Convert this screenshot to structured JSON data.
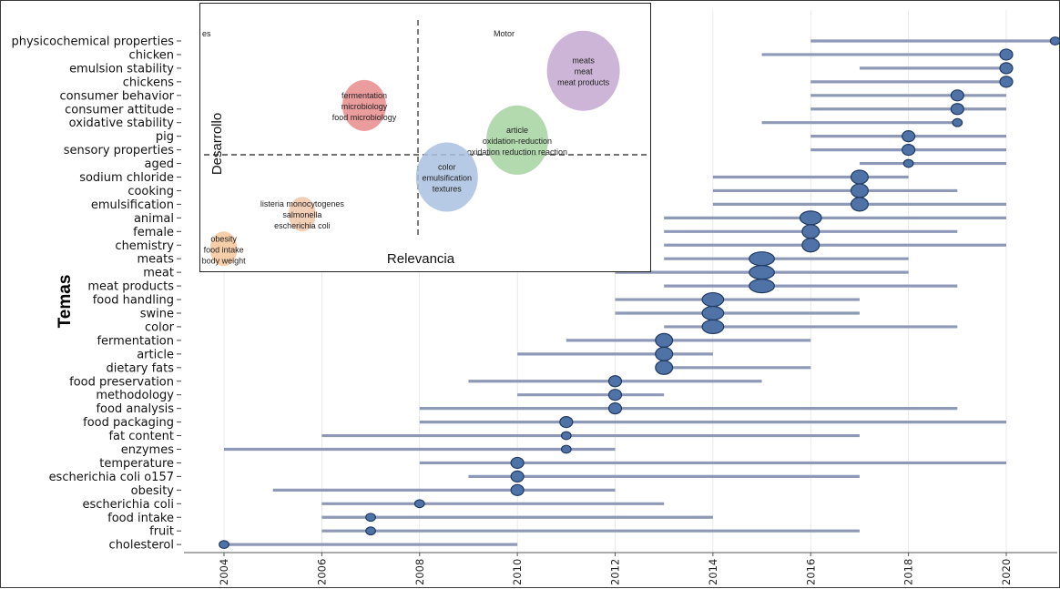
{
  "chart_data": [
    {
      "type": "scatter",
      "ylabel": "Temas",
      "xlim": [
        2004,
        2021
      ],
      "xticks": [
        "2004",
        "2006",
        "2008",
        "2010",
        "2012",
        "2014",
        "2016",
        "2018",
        "2020"
      ],
      "colors": {
        "line": "#8e99b8",
        "bubble": "#4f73a6",
        "bubble_edge": "#1f3a63",
        "grid": "#dddddd"
      },
      "topics": [
        {
          "term": "physicochemical properties",
          "start": 2016,
          "end": 2021,
          "median": 2021,
          "freq": 1
        },
        {
          "term": "chicken",
          "start": 2015,
          "end": 2020,
          "median": 2020,
          "freq": 2
        },
        {
          "term": "emulsion stability",
          "start": 2017,
          "end": 2020,
          "median": 2020,
          "freq": 2
        },
        {
          "term": "chickens",
          "start": 2016,
          "end": 2020,
          "median": 2020,
          "freq": 2
        },
        {
          "term": "consumer behavior",
          "start": 2016,
          "end": 2020,
          "median": 2019,
          "freq": 2
        },
        {
          "term": "consumer attitude",
          "start": 2016,
          "end": 2020,
          "median": 2019,
          "freq": 2
        },
        {
          "term": "oxidative stability",
          "start": 2015,
          "end": 2019,
          "median": 2019,
          "freq": 1
        },
        {
          "term": "pig",
          "start": 2016,
          "end": 2020,
          "median": 2018,
          "freq": 2
        },
        {
          "term": "sensory properties",
          "start": 2016,
          "end": 2020,
          "median": 2018,
          "freq": 2
        },
        {
          "term": "aged",
          "start": 2017,
          "end": 2020,
          "median": 2018,
          "freq": 1
        },
        {
          "term": "sodium chloride",
          "start": 2014,
          "end": 2018,
          "median": 2017,
          "freq": 3
        },
        {
          "term": "cooking",
          "start": 2014,
          "end": 2019,
          "median": 2017,
          "freq": 3
        },
        {
          "term": "emulsification",
          "start": 2014,
          "end": 2020,
          "median": 2017,
          "freq": 3
        },
        {
          "term": "animal",
          "start": 2013,
          "end": 2020,
          "median": 2016,
          "freq": 4
        },
        {
          "term": "female",
          "start": 2013,
          "end": 2019,
          "median": 2016,
          "freq": 3
        },
        {
          "term": "chemistry",
          "start": 2013,
          "end": 2020,
          "median": 2016,
          "freq": 3
        },
        {
          "term": "meats",
          "start": 2013,
          "end": 2018,
          "median": 2015,
          "freq": 5
        },
        {
          "term": "meat",
          "start": 2012,
          "end": 2018,
          "median": 2015,
          "freq": 5
        },
        {
          "term": "meat products",
          "start": 2013,
          "end": 2019,
          "median": 2015,
          "freq": 5
        },
        {
          "term": "food handling",
          "start": 2012,
          "end": 2017,
          "median": 2014,
          "freq": 4
        },
        {
          "term": "swine",
          "start": 2012,
          "end": 2017,
          "median": 2014,
          "freq": 4
        },
        {
          "term": "color",
          "start": 2013,
          "end": 2019,
          "median": 2014,
          "freq": 4
        },
        {
          "term": "fermentation",
          "start": 2011,
          "end": 2016,
          "median": 2013,
          "freq": 3
        },
        {
          "term": "article",
          "start": 2010,
          "end": 2014,
          "median": 2013,
          "freq": 3
        },
        {
          "term": "dietary fats",
          "start": 2013,
          "end": 2016,
          "median": 2013,
          "freq": 3
        },
        {
          "term": "food preservation",
          "start": 2009,
          "end": 2015,
          "median": 2012,
          "freq": 2
        },
        {
          "term": "methodology",
          "start": 2010,
          "end": 2013,
          "median": 2012,
          "freq": 2
        },
        {
          "term": "food analysis",
          "start": 2008,
          "end": 2019,
          "median": 2012,
          "freq": 2
        },
        {
          "term": "food packaging",
          "start": 2008,
          "end": 2020,
          "median": 2011,
          "freq": 2
        },
        {
          "term": "fat content",
          "start": 2006,
          "end": 2017,
          "median": 2011,
          "freq": 1
        },
        {
          "term": "enzymes",
          "start": 2004,
          "end": 2012,
          "median": 2011,
          "freq": 1
        },
        {
          "term": "temperature",
          "start": 2008,
          "end": 2020,
          "median": 2010,
          "freq": 2
        },
        {
          "term": "escherichia coli o157",
          "start": 2009,
          "end": 2017,
          "median": 2010,
          "freq": 2
        },
        {
          "term": "obesity",
          "start": 2005,
          "end": 2012,
          "median": 2010,
          "freq": 2
        },
        {
          "term": "escherichia coli",
          "start": 2006,
          "end": 2013,
          "median": 2008,
          "freq": 1
        },
        {
          "term": "food intake",
          "start": 2006,
          "end": 2014,
          "median": 2007,
          "freq": 1
        },
        {
          "term": "fruit",
          "start": 2006,
          "end": 2017,
          "median": 2007,
          "freq": 1
        },
        {
          "term": "cholesterol",
          "start": 2004,
          "end": 2010,
          "median": 2004,
          "freq": 1
        }
      ]
    },
    {
      "type": "scatter",
      "xlabel": "Relevancia",
      "ylabel": "Desarrollo",
      "corner_label_top_right": "Motor",
      "corner_label_top_left": "es",
      "clusters": [
        {
          "id": "meats",
          "color": "#c4a8d0",
          "terms": [
            "meats",
            "meat",
            "meat products"
          ],
          "relevance": 0.9,
          "development": 0.82,
          "size": 5
        },
        {
          "id": "fermentation",
          "color": "#e88b8b",
          "terms": [
            "fermentation",
            "microbiology",
            "food microbiology"
          ],
          "relevance": 0.37,
          "development": 0.67,
          "size": 3
        },
        {
          "id": "article",
          "color": "#a5d3a0",
          "terms": [
            "article",
            "oxidation-reduction",
            "oxidation reduction reaction"
          ],
          "relevance": 0.74,
          "development": 0.52,
          "size": 4
        },
        {
          "id": "color",
          "color": "#a9bfe0",
          "terms": [
            "color",
            "emulsification",
            "textures"
          ],
          "relevance": 0.57,
          "development": 0.36,
          "size": 4
        },
        {
          "id": "listeria",
          "color": "#f0c5a8",
          "terms": [
            "listeria monocytogenes",
            "salmonella",
            "escherichia coli"
          ],
          "relevance": 0.22,
          "development": 0.2,
          "size": 1
        },
        {
          "id": "obesity",
          "color": "#f6c59b",
          "terms": [
            "obesity",
            "food intake",
            "body weight"
          ],
          "relevance": 0.03,
          "development": 0.05,
          "size": 1
        }
      ]
    }
  ]
}
